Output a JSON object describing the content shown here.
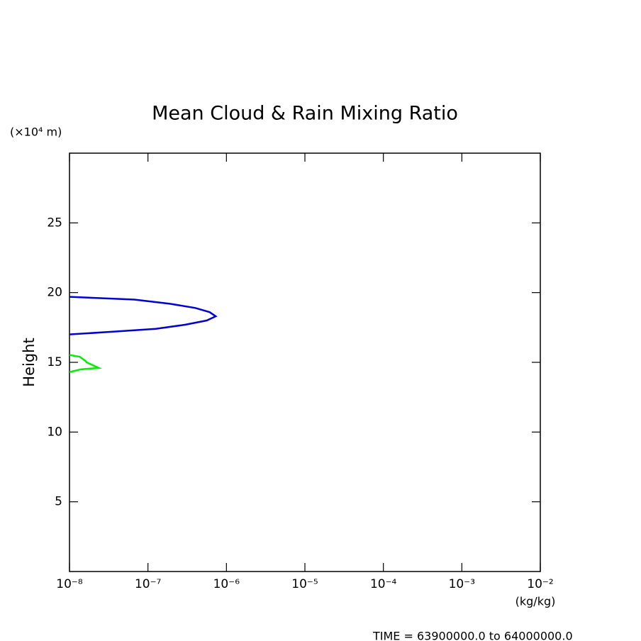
{
  "chart_data": {
    "type": "line",
    "title": "Mean Cloud & Rain Mixing Ratio",
    "yunit": "(×10⁴ m)",
    "ylabel": "Height",
    "xlabel": "(kg/kg)",
    "footer": "TIME =  63900000.0 to 64000000.0",
    "xscale": "log",
    "xlim": [
      1e-08,
      0.01
    ],
    "xticks": [
      {
        "value": 1e-08,
        "label": "10⁻⁸"
      },
      {
        "value": 1e-07,
        "label": "10⁻⁷"
      },
      {
        "value": 1e-06,
        "label": "10⁻⁶"
      },
      {
        "value": 1e-05,
        "label": "10⁻⁵"
      },
      {
        "value": 0.0001,
        "label": "10⁻⁴"
      },
      {
        "value": 0.001,
        "label": "10⁻³"
      },
      {
        "value": 0.01,
        "label": "10⁻²"
      }
    ],
    "ylim": [
      0,
      30
    ],
    "yticks": [
      5,
      10,
      15,
      20,
      25
    ],
    "series": [
      {
        "color": "#0000d0",
        "x": [
          1e-08,
          6.7e-08,
          1.9e-07,
          4e-07,
          6.1e-07,
          7.3e-07,
          5.6e-07,
          3e-07,
          1.26e-07,
          3.6e-08,
          1e-08
        ],
        "values": [
          19.7,
          19.5,
          19.2,
          18.9,
          18.6,
          18.3,
          18.0,
          17.7,
          17.4,
          17.2,
          17.0
        ]
      },
      {
        "color": "#00ee00",
        "x": [
          1e-08,
          1.35e-08,
          1.6e-08,
          1.65e-08,
          2.35e-08,
          1.4e-08,
          1e-08
        ],
        "values": [
          15.53,
          15.4,
          15.1,
          15.0,
          14.6,
          14.5,
          14.3
        ]
      }
    ]
  }
}
